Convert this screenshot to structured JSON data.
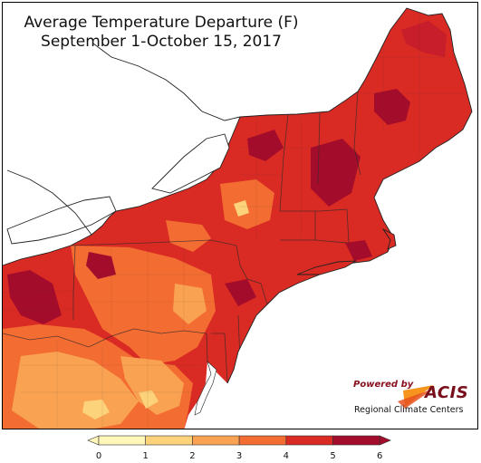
{
  "map": {
    "title_line1": "Average Temperature Departure (F)",
    "title_line2": "September 1-October 15, 2017"
  },
  "branding": {
    "powered_by": "Powered by",
    "acis": "ACIS",
    "regional": "Regional Climate Centers"
  },
  "legend": {
    "labels": [
      "0",
      "1",
      "2",
      "3",
      "4",
      "5",
      "6"
    ],
    "colors": [
      "#fff6b8",
      "#fcd27a",
      "#f9a352",
      "#f36d33",
      "#d92a23",
      "#a40c2c"
    ]
  },
  "palette": {
    "water": "#ffffff",
    "outside": "#ffffff"
  }
}
